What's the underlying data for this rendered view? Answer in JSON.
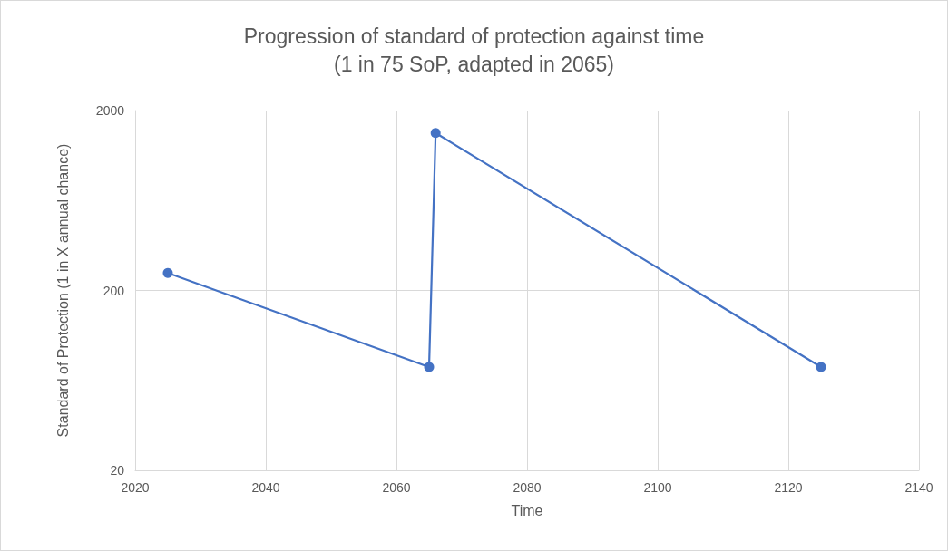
{
  "chart_data": {
    "type": "line",
    "title": "Progression of standard of protection against time",
    "subtitle": "(1 in 75 SoP, adapted in 2065)",
    "xlabel": "Time",
    "ylabel": "Standard of Protection (1 in X annual chance)",
    "x": [
      2025,
      2065,
      2066,
      2125
    ],
    "series": [
      {
        "color": "#4472c4",
        "values": [
          250,
          75,
          1500,
          75
        ]
      }
    ],
    "xlim": [
      2020,
      2140
    ],
    "xticks": [
      2020,
      2040,
      2060,
      2080,
      2100,
      2120,
      2140
    ],
    "ylim": [
      20,
      2000
    ],
    "yticks": [
      20,
      200,
      2000
    ],
    "log": "y",
    "grid": true,
    "marker": "circle",
    "line_style": "solid"
  }
}
